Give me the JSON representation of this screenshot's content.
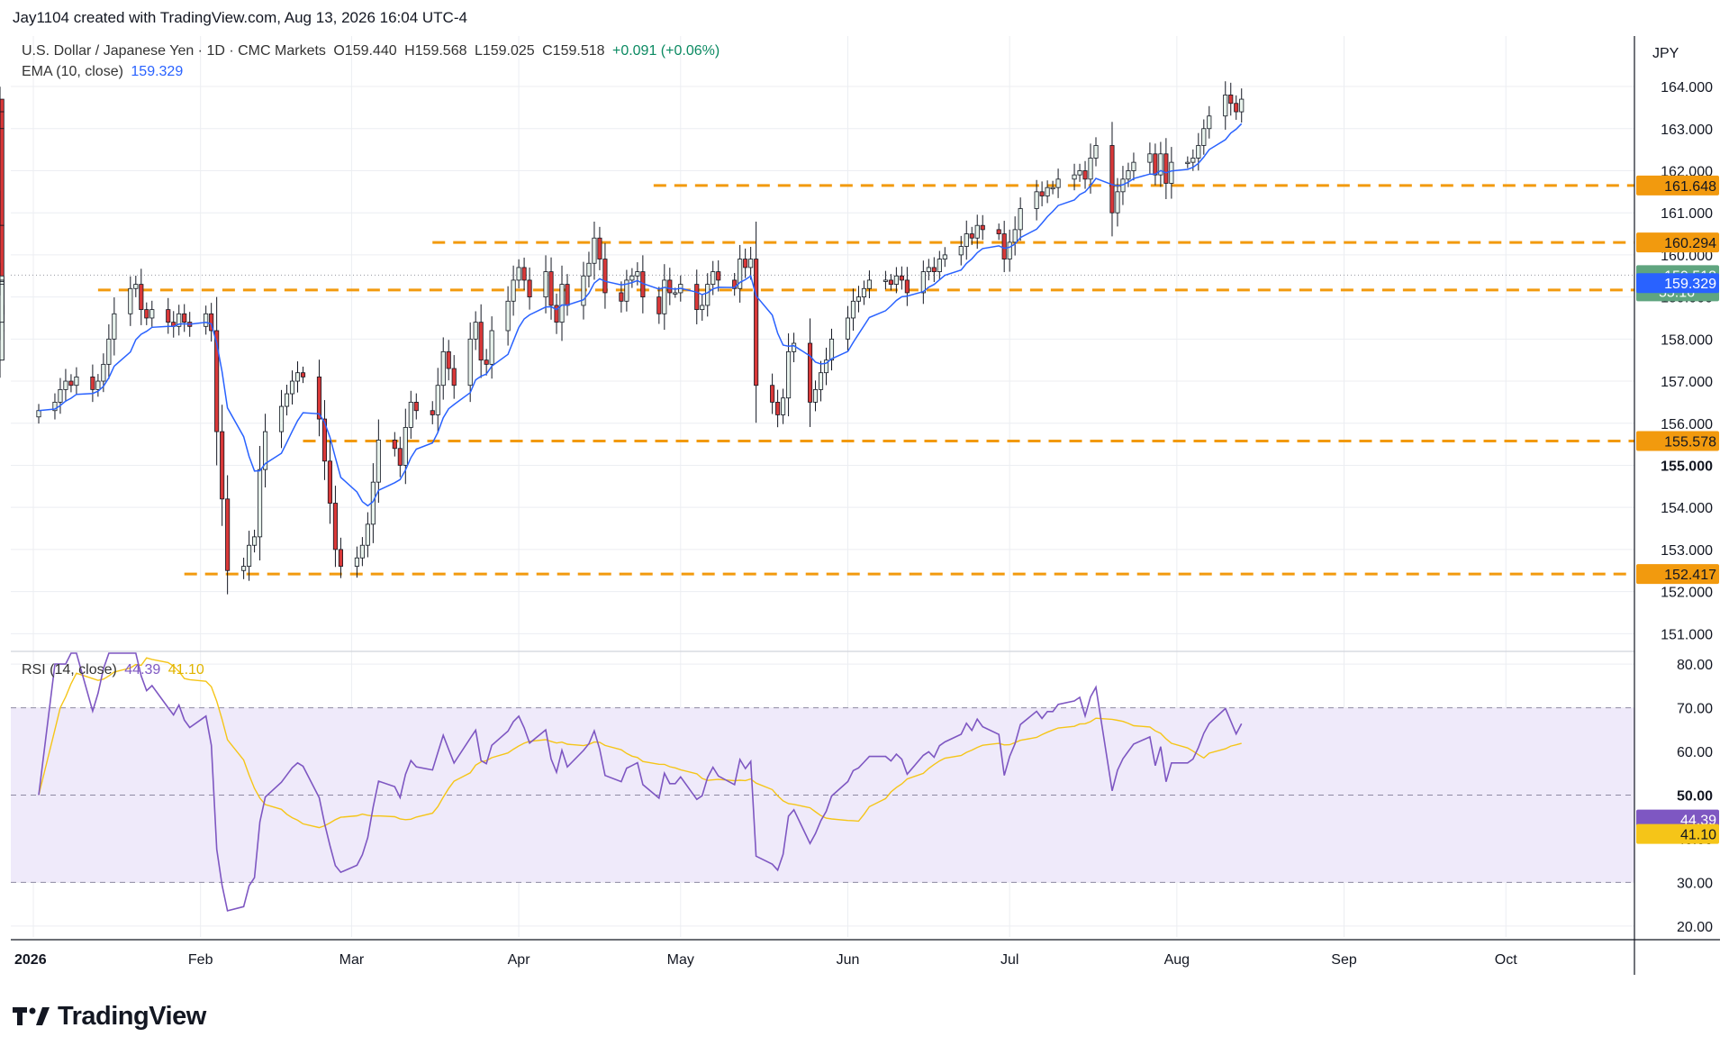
{
  "header": {
    "text": "Jay1104 created with TradingView.com, Aug 13, 2026 16:04 UTC-4"
  },
  "logo": {
    "text": "TradingView"
  },
  "legend": {
    "symbol": "U.S. Dollar / Japanese Yen · 1D · CMC Markets",
    "open": "O159.440",
    "high": "H159.568",
    "low": "L159.025",
    "close": "C159.518",
    "change": "+0.091 (+0.06%)",
    "ema_label": "EMA (10, close)",
    "ema_value": "159.329",
    "rsi_label": "RSI (14, close)",
    "rsi_value": "44.39",
    "rsi_ma_value": "41.10"
  },
  "colors": {
    "up": "#0b8a62",
    "down": "#d93838",
    "ema": "#2962ff",
    "level": "#f29a0e",
    "rsi": "#7e57c2",
    "rsi_ma": "#f5c518",
    "band": "#efeafa"
  },
  "chart_data": [
    {
      "type": "candlestick",
      "title": "U.S. Dollar / Japanese Yen · 1D · CMC Markets",
      "currency": "JPY",
      "ylim": [
        150.6,
        165.2
      ],
      "yticks": [
        "151.000",
        "152.000",
        "153.000",
        "154.000",
        "155.000",
        "156.000",
        "157.000",
        "158.000",
        "159.000",
        "160.000",
        "161.000",
        "162.000",
        "163.000",
        "164.000"
      ],
      "xticks": [
        {
          "label": "2026",
          "day": 0
        },
        {
          "label": "Feb",
          "day": 31
        },
        {
          "label": "Mar",
          "day": 59
        },
        {
          "label": "Apr",
          "day": 90
        },
        {
          "label": "May",
          "day": 120
        },
        {
          "label": "Jun",
          "day": 151
        },
        {
          "label": "Jul",
          "day": 181
        },
        {
          "label": "Aug",
          "day": 212
        },
        {
          "label": "Sep",
          "day": 243
        },
        {
          "label": "Oct",
          "day": 273
        }
      ],
      "last_day": 224,
      "closes": [
        156.3,
        156.5,
        156.8,
        157.0,
        156.9,
        157.1,
        156.8,
        157.0,
        157.4,
        158.0,
        158.6,
        159.2,
        159.3,
        158.7,
        158.5,
        158.7,
        158.4,
        158.3,
        158.6,
        158.4,
        158.3,
        158.6,
        158.2,
        155.8,
        154.2,
        152.5,
        152.6,
        153.1,
        153.3,
        154.9,
        155.8,
        156.4,
        156.7,
        157.0,
        157.2,
        157.1,
        156.1,
        155.1,
        154.1,
        153.0,
        152.6,
        152.8,
        153.1,
        153.6,
        154.6,
        155.6,
        155.4,
        155.0,
        155.9,
        156.5,
        156.3,
        156.2,
        156.9,
        157.7,
        157.3,
        156.9,
        158.0,
        158.4,
        157.5,
        157.4,
        158.2,
        158.9,
        159.4,
        159.7,
        159.4,
        159.0,
        159.6,
        158.8,
        158.4,
        159.3,
        158.8,
        159.5,
        159.8,
        160.4,
        159.9,
        159.1,
        158.9,
        159.4,
        159.5,
        159.6,
        159.0,
        158.6,
        159.4,
        159.1,
        159.1,
        159.3,
        158.7,
        158.8,
        159.3,
        159.6,
        159.4,
        159.2,
        159.9,
        159.7,
        159.9,
        156.9,
        156.5,
        156.2,
        156.6,
        157.7,
        157.9,
        156.5,
        156.8,
        157.2,
        157.5,
        158.0,
        158.5,
        158.9,
        159.0,
        159.2,
        159.4,
        159.4,
        159.3,
        159.5,
        159.4,
        159.1,
        159.6,
        159.7,
        159.6,
        159.9,
        160.0,
        160.2,
        160.5,
        160.4,
        160.7,
        160.6,
        160.5,
        159.9,
        160.3,
        160.6,
        161.1,
        161.5,
        161.4,
        161.6,
        161.6,
        161.8,
        161.9,
        162.0,
        161.8,
        162.3,
        162.6,
        161.0,
        161.5,
        161.8,
        162.0,
        162.2,
        162.4,
        161.9,
        162.4,
        161.7,
        162.2,
        162.2,
        162.3,
        162.6,
        163.0,
        163.3,
        163.8,
        163.6,
        163.4,
        163.7,
        163.4,
        163.0,
        160.7,
        158.2,
        157.5,
        158.6,
        158.8,
        158.6,
        159.4,
        158.4,
        159.3,
        159.4,
        159.4,
        159.5
      ],
      "series": [
        {
          "name": "EMA (10, close)",
          "last": 159.329
        },
        {
          "name": "RSI (14, close)",
          "last": 44.39
        },
        {
          "name": "RSI MA",
          "last": 41.1
        }
      ],
      "levels": [
        {
          "value": 161.648,
          "label": "161.648",
          "from_day": 115
        },
        {
          "value": 160.294,
          "label": "160.294",
          "from_day": 74
        },
        {
          "value": 159.167,
          "label": "159.167",
          "from_day": 12
        },
        {
          "value": 155.578,
          "label": "155.578",
          "from_day": 50
        },
        {
          "value": 152.417,
          "label": "152.417",
          "from_day": 28
        }
      ],
      "price_tags": [
        {
          "label": "159.518",
          "value": 159.518,
          "sub": "55:16"
        },
        {
          "label": "159.329",
          "value": 159.329
        }
      ]
    },
    {
      "type": "line",
      "title": "RSI (14, close)",
      "ylim": [
        17.5,
        82.5
      ],
      "yticks": [
        "20.00",
        "30.00",
        "40.00",
        "50.00",
        "60.00",
        "70.00",
        "80.00"
      ],
      "bands": [
        30,
        70
      ],
      "midline": 50,
      "rsi_tags": [
        {
          "label": "44.39",
          "value": 44.39
        },
        {
          "label": "41.10",
          "value": 41.1
        }
      ]
    }
  ]
}
